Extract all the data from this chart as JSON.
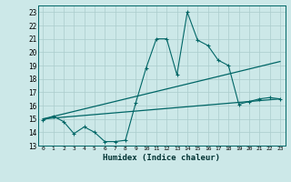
{
  "xlabel": "Humidex (Indice chaleur)",
  "background_color": "#cce8e8",
  "grid_color": "#aacccc",
  "line_color": "#006666",
  "xlim": [
    -0.5,
    23.5
  ],
  "ylim": [
    13,
    23.5
  ],
  "xticks": [
    0,
    1,
    2,
    3,
    4,
    5,
    6,
    7,
    8,
    9,
    10,
    11,
    12,
    13,
    14,
    15,
    16,
    17,
    18,
    19,
    20,
    21,
    22,
    23
  ],
  "yticks": [
    13,
    14,
    15,
    16,
    17,
    18,
    19,
    20,
    21,
    22,
    23
  ],
  "series1_x": [
    0,
    1,
    2,
    3,
    4,
    5,
    6,
    7,
    8,
    9,
    10,
    11,
    12,
    13,
    14,
    15,
    16,
    17,
    18,
    19,
    20,
    21,
    22,
    23
  ],
  "series1_y": [
    14.9,
    15.2,
    14.8,
    13.9,
    14.4,
    14.0,
    13.3,
    13.3,
    13.4,
    16.2,
    18.8,
    21.0,
    21.0,
    18.3,
    23.0,
    20.9,
    20.5,
    19.4,
    19.0,
    16.1,
    16.3,
    16.5,
    16.6,
    16.5
  ],
  "series2_x": [
    0,
    23
  ],
  "series2_y": [
    15.0,
    19.3
  ],
  "series3_x": [
    0,
    23
  ],
  "series3_y": [
    15.0,
    16.5
  ],
  "marker": "+"
}
